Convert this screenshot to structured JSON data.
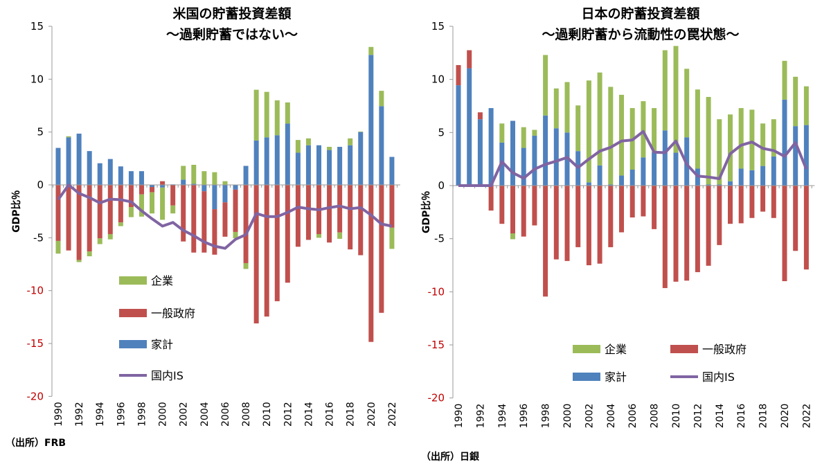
{
  "chart_data": [
    {
      "type": "bar",
      "stacked": true,
      "title": "米国の貯蓄投資差額",
      "subtitle": "～過剰貯蓄ではない～",
      "ylabel": "GDP比％",
      "ylim": [
        -20,
        15
      ],
      "yticks": [
        15,
        10,
        5,
        0,
        -5,
        -10,
        -15,
        -20
      ],
      "source": "（出所）FRB",
      "legend_position": "bottom-left",
      "categories": [
        1990,
        1991,
        1992,
        1993,
        1994,
        1995,
        1996,
        1997,
        1998,
        1999,
        2000,
        2001,
        2002,
        2003,
        2004,
        2005,
        2006,
        2007,
        2008,
        2009,
        2010,
        2011,
        2012,
        2013,
        2014,
        2015,
        2016,
        2017,
        2018,
        2019,
        2020,
        2021,
        2022
      ],
      "xtick_labels": [
        "1990",
        "1992",
        "1994",
        "1996",
        "1998",
        "2000",
        "2002",
        "2004",
        "2006",
        "2008",
        "2010",
        "2012",
        "2014",
        "2016",
        "2018",
        "2020",
        "2022"
      ],
      "series": [
        {
          "name": "家計",
          "type": "bar",
          "color": "#4f81bd",
          "values": [
            3.5,
            4.5,
            4.85,
            3.2,
            2.05,
            2.45,
            1.75,
            1.3,
            1.3,
            -0.2,
            -0.25,
            0.05,
            0.5,
            0.1,
            -0.6,
            -2.3,
            -1.65,
            -0.45,
            1.8,
            4.2,
            4.5,
            4.7,
            5.8,
            3.05,
            3.75,
            3.75,
            3.3,
            3.6,
            3.75,
            5.0,
            12.3,
            7.45,
            2.65
          ]
        },
        {
          "name": "一般政府",
          "type": "bar",
          "color": "#c0504d",
          "values": [
            -5.3,
            -6.2,
            -7.1,
            -6.3,
            -5.05,
            -4.65,
            -3.55,
            -2.1,
            -0.9,
            -0.5,
            0.35,
            -1.95,
            -5.35,
            -6.4,
            -5.8,
            -4.3,
            -3.25,
            -4.0,
            -7.4,
            -13.1,
            -12.45,
            -11.0,
            -9.25,
            -5.85,
            -5.2,
            -4.65,
            -5.45,
            -4.5,
            -6.1,
            -6.65,
            -14.85,
            -12.1,
            -4.05
          ]
        },
        {
          "name": "企業",
          "type": "bar",
          "color": "#9bbb59",
          "values": [
            -1.2,
            0.1,
            -0.2,
            -0.45,
            -0.55,
            -0.5,
            -0.35,
            -0.95,
            -2.1,
            -2.0,
            -3.05,
            -0.75,
            1.3,
            1.8,
            1.3,
            1.2,
            0.35,
            -0.6,
            -0.55,
            4.8,
            4.3,
            3.3,
            2.0,
            1.2,
            0.65,
            -0.35,
            0.3,
            -0.6,
            0.65,
            0.05,
            0.75,
            1.45,
            -2.0
          ]
        },
        {
          "name": "国内IS",
          "type": "line",
          "color": "#8064a2",
          "values": [
            -1.4,
            0.0,
            -0.8,
            -1.2,
            -1.7,
            -1.35,
            -1.4,
            -1.6,
            -2.45,
            -3.2,
            -3.9,
            -3.55,
            -4.3,
            -4.8,
            -5.4,
            -5.8,
            -6.0,
            -5.15,
            -4.7,
            -2.7,
            -3.0,
            -3.0,
            -2.6,
            -2.1,
            -2.25,
            -2.35,
            -2.15,
            -2.0,
            -2.25,
            -2.15,
            -2.85,
            -3.7,
            -3.9
          ]
        }
      ]
    },
    {
      "type": "bar",
      "stacked": true,
      "title": "日本の貯蓄投資差額",
      "subtitle": "～過剰貯蓄から流動性の罠状態～",
      "ylabel": "GDP比％",
      "ylim": [
        -20,
        15
      ],
      "yticks": [
        15,
        10,
        5,
        0,
        -5,
        -10,
        -15,
        -20
      ],
      "source": "（出所）日銀",
      "legend_position": "bottom-right",
      "categories": [
        1990,
        1991,
        1992,
        1993,
        1994,
        1995,
        1996,
        1997,
        1998,
        1999,
        2000,
        2001,
        2002,
        2003,
        2004,
        2005,
        2006,
        2007,
        2008,
        2009,
        2010,
        2011,
        2012,
        2013,
        2014,
        2015,
        2016,
        2017,
        2018,
        2019,
        2020,
        2021,
        2022
      ],
      "xtick_labels": [
        "1990",
        "1992",
        "1994",
        "1996",
        "1998",
        "2000",
        "2002",
        "2004",
        "2006",
        "2008",
        "2010",
        "2012",
        "2014",
        "2016",
        "2018",
        "2020",
        "2022"
      ],
      "series": [
        {
          "name": "家計",
          "type": "bar",
          "color": "#4f81bd",
          "values": [
            9.45,
            11.05,
            6.25,
            7.3,
            4.05,
            6.1,
            3.55,
            4.7,
            6.6,
            5.4,
            5.0,
            3.25,
            0.3,
            1.9,
            0.1,
            0.95,
            1.5,
            2.65,
            3.15,
            5.2,
            3.1,
            4.55,
            1.6,
            0.1,
            0.1,
            0.4,
            1.6,
            1.45,
            1.85,
            2.75,
            8.1,
            5.6,
            5.7
          ]
        },
        {
          "name": "一般政府",
          "type": "bar",
          "color": "#c0504d",
          "values": [
            1.9,
            1.7,
            0.65,
            -2.35,
            -3.6,
            -4.5,
            -4.8,
            -3.75,
            -10.45,
            -6.95,
            -7.1,
            -5.8,
            -7.5,
            -7.35,
            -5.8,
            -4.4,
            -3.0,
            -2.9,
            -4.1,
            -9.65,
            -9.05,
            -8.95,
            -8.15,
            -7.55,
            -5.6,
            -3.6,
            -3.55,
            -3.05,
            -2.45,
            -3.05,
            -9.0,
            -6.15,
            -7.9
          ]
        },
        {
          "name": "企業",
          "type": "bar",
          "color": "#9bbb59",
          "values": [
            0,
            0,
            0,
            0,
            1.8,
            -0.55,
            1.95,
            0.55,
            5.7,
            3.75,
            4.75,
            4.3,
            9.6,
            8.75,
            9.2,
            7.6,
            5.8,
            5.3,
            4.15,
            7.55,
            10.05,
            6.45,
            7.45,
            8.25,
            6.15,
            6.3,
            5.7,
            5.7,
            4.0,
            3.5,
            3.65,
            4.65,
            3.65
          ]
        },
        {
          "name": "国内IS",
          "type": "line",
          "color": "#8064a2",
          "values": [
            0,
            0,
            0,
            0,
            2.25,
            1.2,
            0.7,
            1.55,
            2.0,
            2.3,
            2.65,
            1.7,
            2.5,
            3.25,
            3.6,
            4.2,
            4.3,
            5.1,
            3.15,
            3.1,
            4.2,
            2.0,
            0.9,
            0.8,
            0.65,
            3.0,
            3.8,
            4.1,
            3.5,
            3.3,
            2.75,
            4.05,
            1.55
          ]
        }
      ]
    }
  ]
}
